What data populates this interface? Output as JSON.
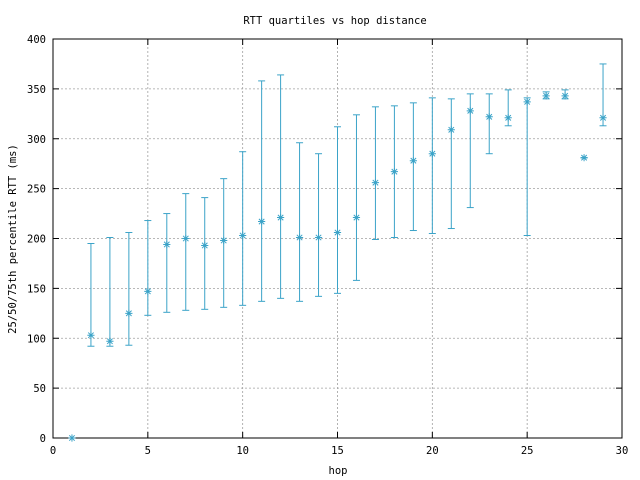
{
  "chart_data": {
    "type": "scatter",
    "title": "RTT quartiles vs hop distance",
    "xlabel": "hop",
    "ylabel": "25/50/75th percentile RTT (ms)",
    "xlim": [
      0,
      30
    ],
    "ylim": [
      0,
      400
    ],
    "xticks": [
      0,
      5,
      10,
      15,
      20,
      25,
      30
    ],
    "yticks": [
      0,
      50,
      100,
      150,
      200,
      250,
      300,
      350,
      400
    ],
    "grid": true,
    "legend": "none",
    "color": "#3ba3c8",
    "series": [
      {
        "points": [
          {
            "x": 1,
            "median": 0,
            "p25": 0,
            "p75": 0
          },
          {
            "x": 2,
            "median": 103,
            "p25": 92,
            "p75": 195
          },
          {
            "x": 3,
            "median": 97,
            "p25": 92,
            "p75": 201
          },
          {
            "x": 4,
            "median": 125,
            "p25": 93,
            "p75": 206
          },
          {
            "x": 5,
            "median": 147,
            "p25": 123,
            "p75": 218
          },
          {
            "x": 6,
            "median": 194,
            "p25": 126,
            "p75": 225
          },
          {
            "x": 7,
            "median": 200,
            "p25": 128,
            "p75": 245
          },
          {
            "x": 8,
            "median": 193,
            "p25": 129,
            "p75": 241
          },
          {
            "x": 9,
            "median": 198,
            "p25": 131,
            "p75": 260
          },
          {
            "x": 10,
            "median": 203,
            "p25": 133,
            "p75": 287
          },
          {
            "x": 11,
            "median": 217,
            "p25": 137,
            "p75": 358
          },
          {
            "x": 12,
            "median": 221,
            "p25": 140,
            "p75": 364
          },
          {
            "x": 13,
            "median": 201,
            "p25": 137,
            "p75": 296
          },
          {
            "x": 14,
            "median": 201,
            "p25": 142,
            "p75": 285
          },
          {
            "x": 15,
            "median": 206,
            "p25": 145,
            "p75": 312
          },
          {
            "x": 16,
            "median": 221,
            "p25": 158,
            "p75": 324
          },
          {
            "x": 17,
            "median": 256,
            "p25": 199,
            "p75": 332
          },
          {
            "x": 18,
            "median": 267,
            "p25": 201,
            "p75": 333
          },
          {
            "x": 19,
            "median": 278,
            "p25": 208,
            "p75": 336
          },
          {
            "x": 20,
            "median": 285,
            "p25": 205,
            "p75": 341
          },
          {
            "x": 21,
            "median": 309,
            "p25": 210,
            "p75": 340
          },
          {
            "x": 22,
            "median": 328,
            "p25": 231,
            "p75": 345
          },
          {
            "x": 23,
            "median": 322,
            "p25": 285,
            "p75": 345
          },
          {
            "x": 24,
            "median": 321,
            "p25": 313,
            "p75": 349
          },
          {
            "x": 25,
            "median": 337,
            "p25": 203,
            "p75": 341
          },
          {
            "x": 26,
            "median": 343,
            "p25": 340,
            "p75": 347
          },
          {
            "x": 27,
            "median": 343,
            "p25": 340,
            "p75": 349
          },
          {
            "x": 28,
            "median": 281,
            "p25": 281,
            "p75": 281
          },
          {
            "x": 29,
            "median": 321,
            "p25": 313,
            "p75": 375
          }
        ]
      }
    ]
  }
}
